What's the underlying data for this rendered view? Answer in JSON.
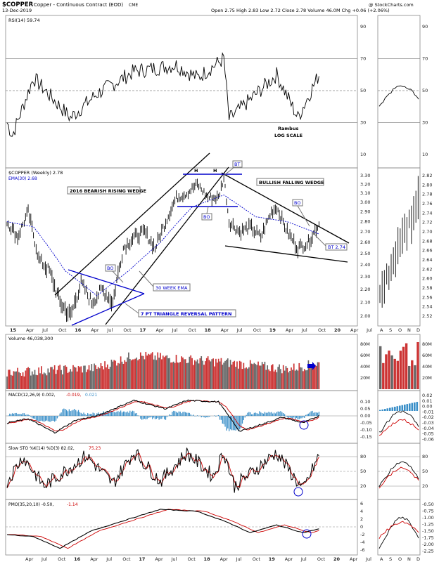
{
  "header": {
    "symbol": "$COPPER",
    "name": "Copper - Continuous Contract (EOD)",
    "exchange": "CME",
    "date": "13-Dec-2019",
    "ohlc": "Open 2.75 High 2.83 Low 2.72 Close 2.78 Volume 46.0M Chg +0.06 (+2.06%)",
    "watermark": "@ StockCharts.com"
  },
  "colors": {
    "price_up": "#000000",
    "volume_up": "#666666",
    "volume_down": "#cc3333",
    "signal": "#cc0000",
    "accent": "#0000cc",
    "histogram": "#3a8fc8",
    "grid": "#888888"
  },
  "panels": {
    "rsi": {
      "legend": "RSI(14) 59.74",
      "ticks": [
        "90",
        "70",
        "50",
        "30",
        "10"
      ],
      "note_1": "Rambus",
      "note_2": "LOG SCALE",
      "tick_values": [
        90,
        70,
        50,
        30,
        10
      ],
      "levels": [
        70,
        50,
        30
      ]
    },
    "price": {
      "legend": "$COPPER (Weekly) 2.78",
      "ema_legend": "EMA(30) 2.68",
      "ticks": [
        "3.30",
        "3.20",
        "3.10",
        "3.00",
        "2.90",
        "2.80",
        "2.70",
        "2.60",
        "2.50",
        "2.40",
        "2.30",
        "2.20",
        "2.10",
        "2.00"
      ],
      "ticks_right": [
        "2.82",
        "2.80",
        "2.78",
        "2.76",
        "2.74",
        "2.72",
        "2.70",
        "2.68",
        "2.66",
        "2.64",
        "2.62",
        "2.60",
        "2.58",
        "2.56",
        "2.54",
        "2.52"
      ],
      "x_labels": [
        "15",
        "Apr",
        "Jul",
        "Oct",
        "16",
        "Apr",
        "Jul",
        "Oct",
        "17",
        "Apr",
        "Jul",
        "Oct",
        "18",
        "Apr",
        "Jul",
        "Oct",
        "19",
        "Apr",
        "Jul",
        "Oct",
        "20",
        "Apr",
        "Jul"
      ],
      "x_labels_right": [
        "A",
        "S",
        "O",
        "N",
        "D"
      ],
      "annotations": {
        "rising_wedge": "2016 BEARISH RISING WEDGE",
        "falling_wedge": "BULLISH FALLING WEDGE",
        "triangle": "7 PT TRIANGLE REVERSAL PATTERN",
        "ema": "30 WEEK EMA",
        "bo": "BO",
        "bt": "BT",
        "h": "H",
        "bt_price": "BT 2.74"
      }
    },
    "volume": {
      "legend": "Volume 46,038,300",
      "ticks": [
        "80M",
        "60M",
        "40M",
        "20M"
      ],
      "tick_values": [
        80,
        60,
        40,
        20
      ]
    },
    "macd": {
      "legend_macd": "MACD(12,26,9) 0.002,",
      "legend_signal": "-0.019,",
      "legend_hist": "0.021",
      "ticks": [
        "0.10",
        "0.05",
        "0.00",
        "-0.05",
        "-0.10",
        "-0.15"
      ],
      "ticks_right": [
        "0.02",
        "0.01",
        "0.00",
        "-0.01",
        "-0.02",
        "-0.03",
        "-0.04",
        "-0.05",
        "-0.06"
      ],
      "tick_values": [
        0.1,
        0.05,
        0,
        -0.05,
        -0.1,
        -0.15
      ]
    },
    "sto": {
      "legend": "Slow STO %K(14) %D(3) 82.02,",
      "legend_d": "75.23",
      "ticks": [
        "80",
        "50",
        "20"
      ],
      "tick_values": [
        80,
        50,
        20
      ]
    },
    "pmo": {
      "legend": "PMO(35,20,10) -0.50,",
      "legend_signal": "-1.14",
      "ticks": [
        "6",
        "4",
        "2",
        "0",
        "-2",
        "-4",
        "-6"
      ],
      "ticks_right": [
        "-0.50",
        "-0.75",
        "-1.00",
        "-1.25",
        "-1.50",
        "-1.75",
        "-2.00",
        "-2.25"
      ],
      "tick_values": [
        6,
        4,
        2,
        0,
        -2,
        -4,
        -6
      ],
      "x_labels": [
        "Apr",
        "Jul",
        "Oct",
        "16",
        "Apr",
        "Jul",
        "Oct",
        "17",
        "Apr",
        "Jul",
        "Oct",
        "18",
        "Apr",
        "Jul",
        "Oct",
        "19",
        "Apr",
        "Jul",
        "Oct",
        "20",
        "Apr",
        "Jul"
      ],
      "x_labels_right": [
        "A",
        "S",
        "O",
        "N",
        "D"
      ]
    }
  },
  "chart_data": {
    "type": "line",
    "title": "$COPPER Copper - Continuous Contract (EOD) CME",
    "xlabel": "",
    "ylabel": "",
    "x_range": [
      "2015-01",
      "2020-07"
    ],
    "ylim": [
      1.95,
      3.35
    ],
    "log_scale": true,
    "grid": false,
    "price_close_anchors": [
      {
        "x": "2015-01",
        "y": 2.8
      },
      {
        "x": "2015-03",
        "y": 2.65
      },
      {
        "x": "2015-05",
        "y": 2.9
      },
      {
        "x": "2015-07",
        "y": 2.45
      },
      {
        "x": "2015-09",
        "y": 2.35
      },
      {
        "x": "2015-11",
        "y": 2.1
      },
      {
        "x": "2016-01",
        "y": 2.0
      },
      {
        "x": "2016-03",
        "y": 2.25
      },
      {
        "x": "2016-05",
        "y": 2.1
      },
      {
        "x": "2016-07",
        "y": 2.2
      },
      {
        "x": "2016-09",
        "y": 2.1
      },
      {
        "x": "2016-11",
        "y": 2.55
      },
      {
        "x": "2017-01",
        "y": 2.65
      },
      {
        "x": "2017-03",
        "y": 2.7
      },
      {
        "x": "2017-05",
        "y": 2.55
      },
      {
        "x": "2017-07",
        "y": 2.8
      },
      {
        "x": "2017-09",
        "y": 3.05
      },
      {
        "x": "2017-11",
        "y": 3.1
      },
      {
        "x": "2018-01",
        "y": 3.2
      },
      {
        "x": "2018-03",
        "y": 3.05
      },
      {
        "x": "2018-05",
        "y": 3.05
      },
      {
        "x": "2018-06",
        "y": 3.28
      },
      {
        "x": "2018-07",
        "y": 2.8
      },
      {
        "x": "2018-09",
        "y": 2.7
      },
      {
        "x": "2018-11",
        "y": 2.75
      },
      {
        "x": "2019-01",
        "y": 2.65
      },
      {
        "x": "2019-03",
        "y": 2.9
      },
      {
        "x": "2019-04",
        "y": 2.95
      },
      {
        "x": "2019-06",
        "y": 2.7
      },
      {
        "x": "2019-08",
        "y": 2.55
      },
      {
        "x": "2019-10",
        "y": 2.6
      },
      {
        "x": "2019-12",
        "y": 2.78
      }
    ],
    "ema30_anchors": [
      {
        "x": "2015-01",
        "y": 2.8
      },
      {
        "x": "2015-06",
        "y": 2.75
      },
      {
        "x": "2015-12",
        "y": 2.35
      },
      {
        "x": "2016-06",
        "y": 2.15
      },
      {
        "x": "2016-12",
        "y": 2.35
      },
      {
        "x": "2017-06",
        "y": 2.6
      },
      {
        "x": "2017-12",
        "y": 2.95
      },
      {
        "x": "2018-06",
        "y": 3.08
      },
      {
        "x": "2018-12",
        "y": 2.85
      },
      {
        "x": "2019-06",
        "y": 2.8
      },
      {
        "x": "2019-12",
        "y": 2.68
      }
    ],
    "rsi_anchors": [
      {
        "x": "2015-01",
        "y": 30
      },
      {
        "x": "2015-02",
        "y": 22
      },
      {
        "x": "2015-06",
        "y": 58
      },
      {
        "x": "2016-01",
        "y": 33
      },
      {
        "x": "2016-06",
        "y": 48
      },
      {
        "x": "2017-01",
        "y": 62
      },
      {
        "x": "2017-09",
        "y": 66
      },
      {
        "x": "2018-01",
        "y": 58
      },
      {
        "x": "2018-06",
        "y": 70
      },
      {
        "x": "2018-07",
        "y": 32
      },
      {
        "x": "2019-04",
        "y": 60
      },
      {
        "x": "2019-08",
        "y": 33
      },
      {
        "x": "2019-12",
        "y": 60
      }
    ],
    "macd_anchors": [
      {
        "x": "2015-01",
        "y": -0.05
      },
      {
        "x": "2015-05",
        "y": -0.02
      },
      {
        "x": "2015-10",
        "y": -0.12
      },
      {
        "x": "2016-02",
        "y": -0.03
      },
      {
        "x": "2016-06",
        "y": 0.0
      },
      {
        "x": "2017-01",
        "y": 0.11
      },
      {
        "x": "2017-07",
        "y": 0.05
      },
      {
        "x": "2017-11",
        "y": 0.11
      },
      {
        "x": "2018-05",
        "y": 0.1
      },
      {
        "x": "2018-09",
        "y": -0.11
      },
      {
        "x": "2019-02",
        "y": -0.05
      },
      {
        "x": "2019-05",
        "y": -0.01
      },
      {
        "x": "2019-09",
        "y": -0.05
      },
      {
        "x": "2019-12",
        "y": 0.0
      }
    ],
    "sto_anchors": [
      {
        "x": "2015-01",
        "y": 30
      },
      {
        "x": "2015-04",
        "y": 80
      },
      {
        "x": "2015-08",
        "y": 20
      },
      {
        "x": "2016-04",
        "y": 82
      },
      {
        "x": "2016-09",
        "y": 25
      },
      {
        "x": "2017-01",
        "y": 90
      },
      {
        "x": "2017-06",
        "y": 30
      },
      {
        "x": "2017-11",
        "y": 88
      },
      {
        "x": "2018-04",
        "y": 40
      },
      {
        "x": "2018-06",
        "y": 90
      },
      {
        "x": "2018-08",
        "y": 20
      },
      {
        "x": "2019-04",
        "y": 88
      },
      {
        "x": "2019-09",
        "y": 12
      },
      {
        "x": "2019-12",
        "y": 82
      }
    ],
    "pmo_anchors": [
      {
        "x": "2015-01",
        "y": -2
      },
      {
        "x": "2015-06",
        "y": -2.5
      },
      {
        "x": "2015-11",
        "y": -5.5
      },
      {
        "x": "2016-05",
        "y": -1
      },
      {
        "x": "2016-12",
        "y": 2
      },
      {
        "x": "2017-06",
        "y": 4.5
      },
      {
        "x": "2018-01",
        "y": 4
      },
      {
        "x": "2018-07",
        "y": 1
      },
      {
        "x": "2018-11",
        "y": -1.5
      },
      {
        "x": "2019-04",
        "y": 0.5
      },
      {
        "x": "2019-09",
        "y": -1.5
      },
      {
        "x": "2019-12",
        "y": -0.5
      }
    ],
    "volume_anchors_millions": [
      {
        "x": "2015-01",
        "y": 30
      },
      {
        "x": "2016-06",
        "y": 38
      },
      {
        "x": "2017-01",
        "y": 60
      },
      {
        "x": "2018-06",
        "y": 48
      },
      {
        "x": "2019-06",
        "y": 36
      },
      {
        "x": "2019-12",
        "y": 46
      }
    ],
    "series": [
      {
        "name": "$COPPER (Weekly)",
        "last": 2.78
      },
      {
        "name": "EMA(30)",
        "last": 2.68
      },
      {
        "name": "RSI(14)",
        "last": 59.74
      },
      {
        "name": "Volume",
        "last": 46038300
      },
      {
        "name": "MACD(12,26,9)",
        "last": 0.002
      },
      {
        "name": "Slow STO %K(14)",
        "last": 82.02
      },
      {
        "name": "PMO(35,20,10)",
        "last": -0.5
      }
    ]
  }
}
